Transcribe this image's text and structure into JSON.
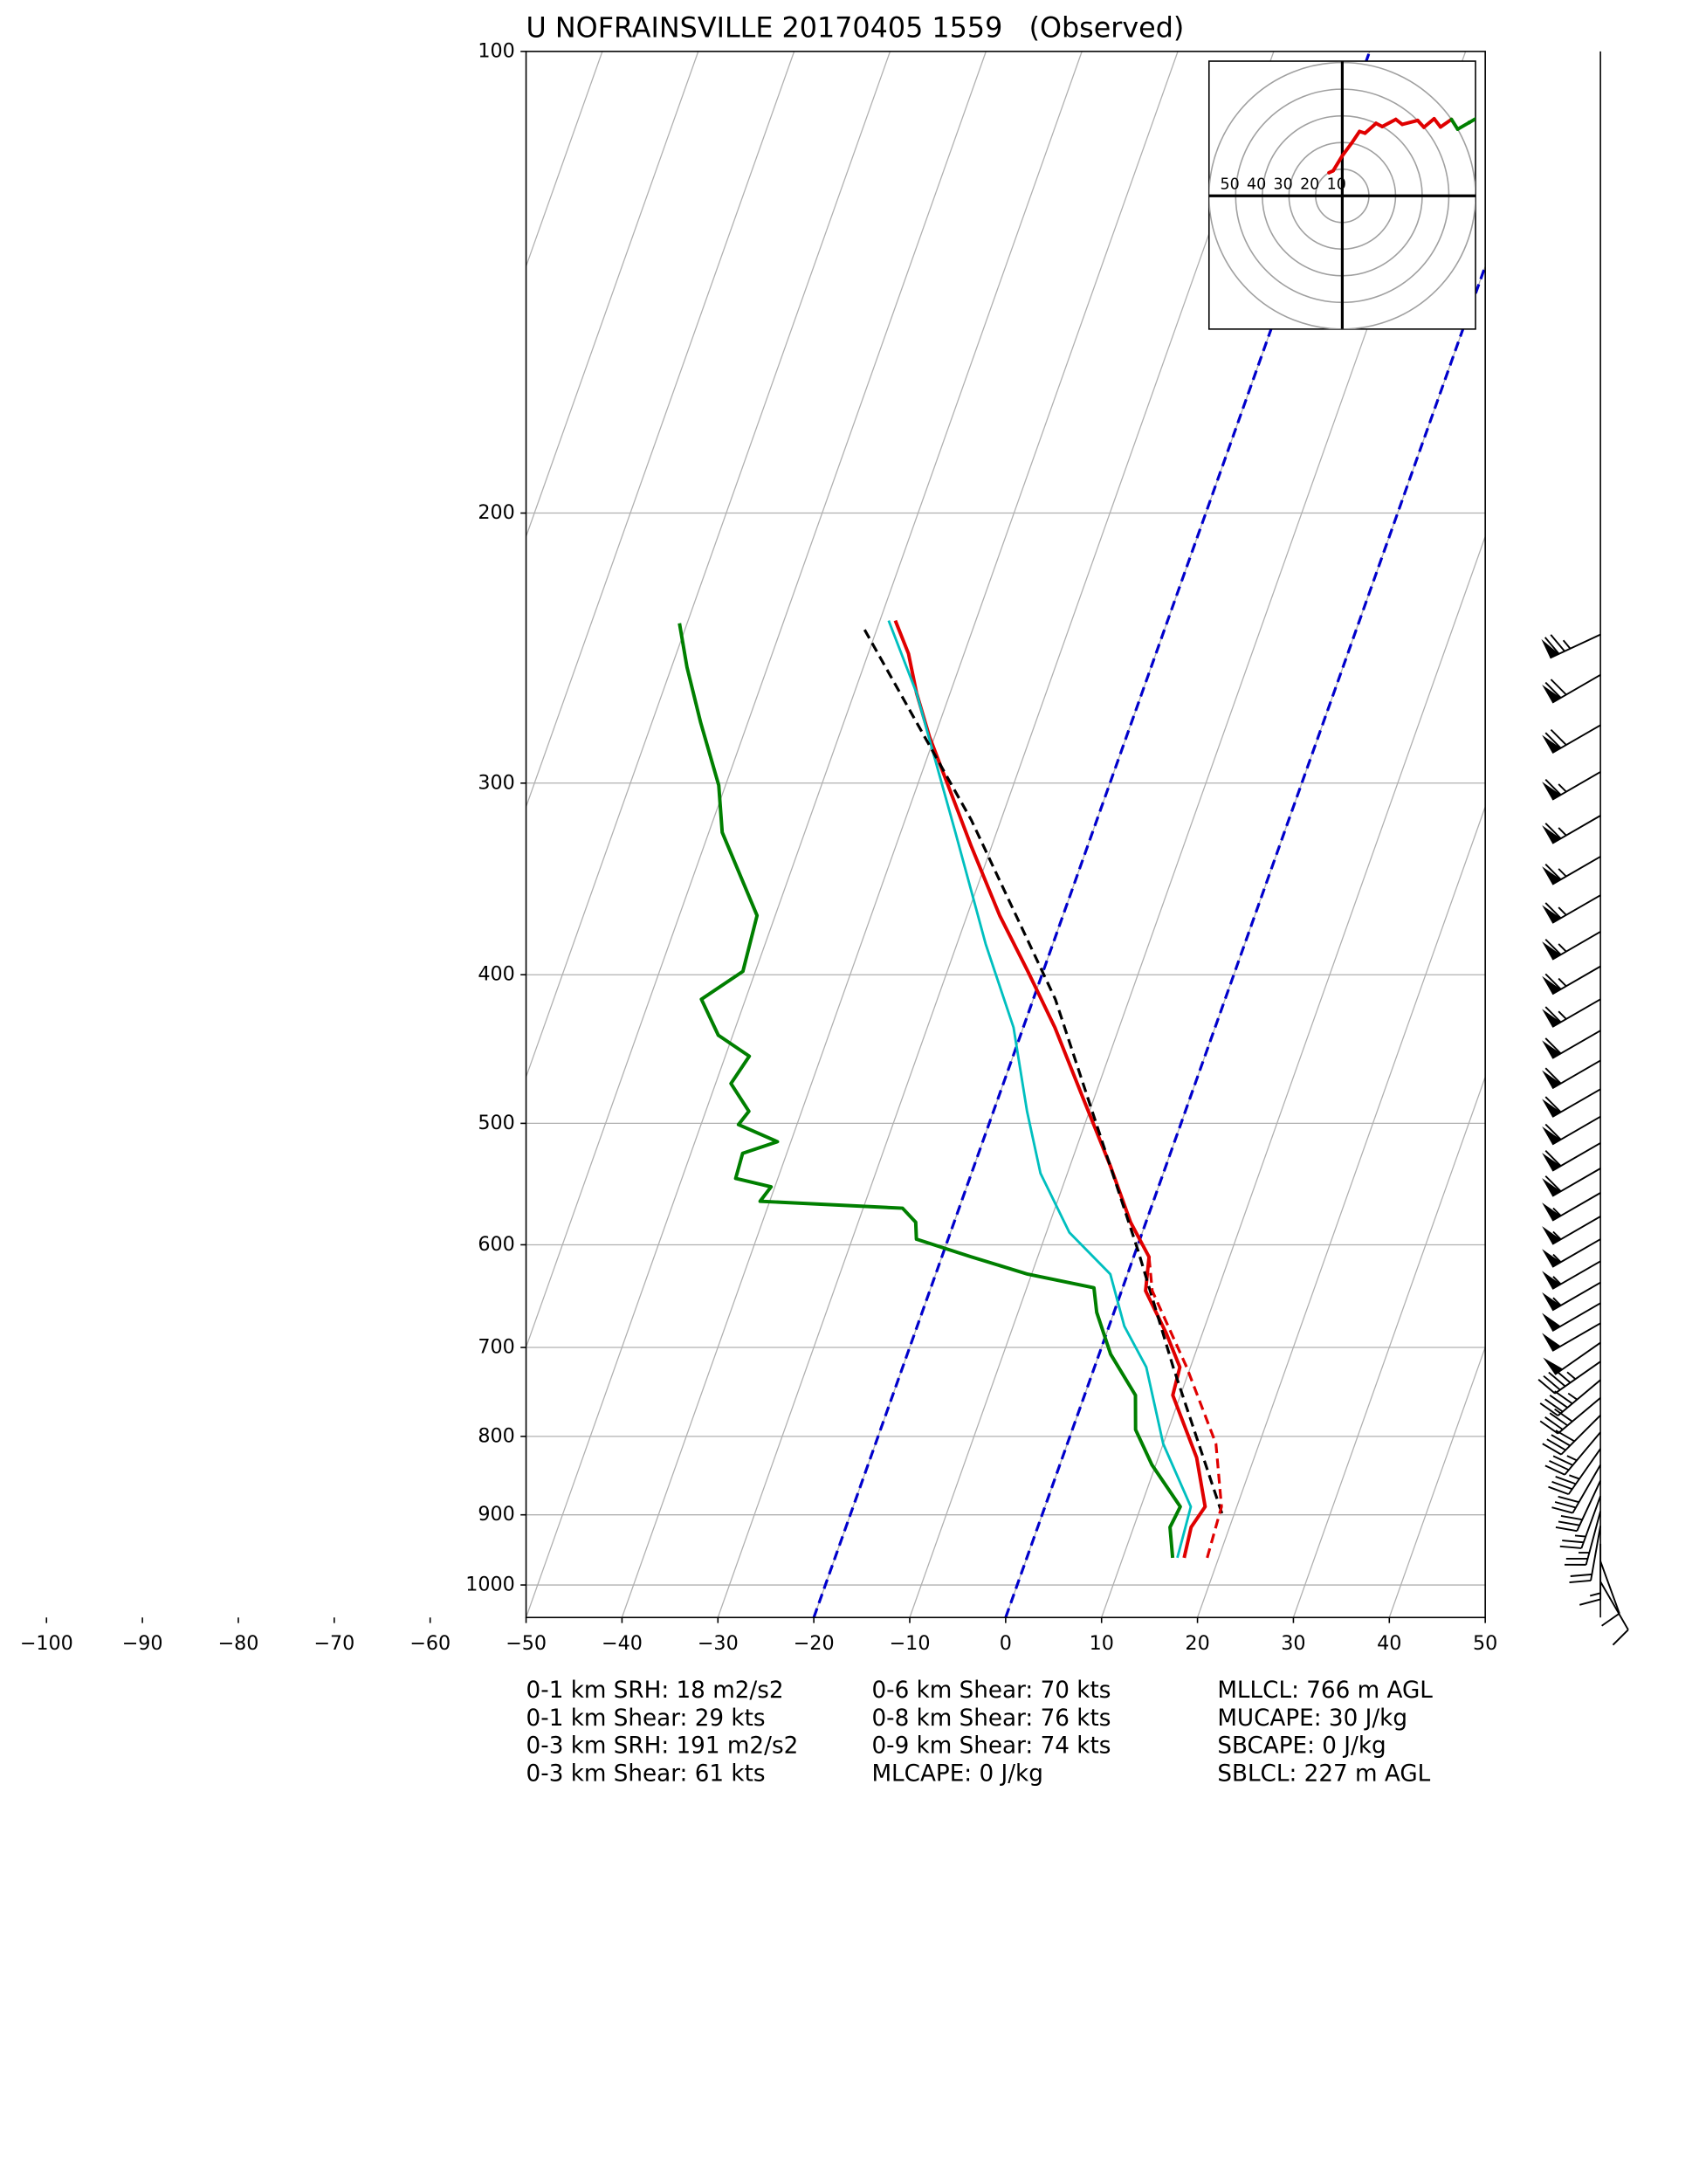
{
  "chart_data": {
    "type": "skewt",
    "title": "U NOFRAINSVILLE 20170405 1559   (Observed)",
    "xlim": [
      -50,
      50
    ],
    "ylim": [
      1050,
      100
    ],
    "xticks": [
      {
        "value": -100,
        "label": "−100"
      },
      {
        "value": -90,
        "label": "−90"
      },
      {
        "value": -80,
        "label": "−80"
      },
      {
        "value": -70,
        "label": "−70"
      },
      {
        "value": -60,
        "label": "−60"
      },
      {
        "value": -50,
        "label": "−50"
      },
      {
        "value": -40,
        "label": "−40"
      },
      {
        "value": -30,
        "label": "−30"
      },
      {
        "value": -20,
        "label": "−20"
      },
      {
        "value": -10,
        "label": "−10"
      },
      0,
      10,
      20,
      30,
      40,
      50
    ],
    "yticks": [
      100,
      200,
      300,
      400,
      500,
      600,
      700,
      800,
      900,
      1000
    ],
    "log_y": true,
    "grid": true,
    "highlight_isotherms": {
      "values": [
        -20,
        0
      ],
      "color": "#0000cc"
    },
    "series": [
      {
        "color": "#e00000",
        "width": 2.5,
        "dashed": false,
        "pressure": [
          960,
          917,
          889,
          826,
          752,
          721,
          685,
          643,
          611,
          580,
          533,
          481,
          433,
          398,
          366,
          330,
          313,
          280,
          262,
          247,
          235
        ],
        "values": [
          16.4,
          16.0,
          16.7,
          14.0,
          9.2,
          8.9,
          6.2,
          2.5,
          1.6,
          -1.6,
          -5.8,
          -11.2,
          -16.7,
          -21.6,
          -26.6,
          -32.1,
          -34.8,
          -40.5,
          -43.5,
          -45.8,
          -48.4
        ]
      },
      {
        "color": "#007f00",
        "width": 2.5,
        "dashed": false,
        "pressure": [
          960,
          917,
          889,
          835,
          792,
          752,
          707,
          664,
          640,
          627,
          611,
          595,
          580,
          568,
          562,
          550,
          543,
          523,
          514,
          501,
          491,
          471,
          452,
          438,
          415,
          398,
          366,
          323,
          301,
          274,
          252,
          236
        ],
        "values": [
          15.2,
          13.8,
          14.1,
          9.6,
          6.6,
          5.3,
          1.2,
          -1.8,
          -3.0,
          -10.4,
          -16.9,
          -23.3,
          -24.0,
          -25.9,
          -41.0,
          -40.4,
          -44.4,
          -44.6,
          -41.4,
          -46.1,
          -45.5,
          -48.4,
          -47.5,
          -51.5,
          -54.6,
          -51.3,
          -51.9,
          -58.6,
          -60.7,
          -64.9,
          -68.4,
          -70.8
        ]
      },
      {
        "color": "#00bfbf",
        "width": 1.8,
        "dashed": false,
        "pressure": [
          960,
          889,
          809,
          721,
          678,
          627,
          589,
          539,
          491,
          433,
          382,
          323,
          262,
          235
        ],
        "values": [
          15.7,
          15.2,
          10.0,
          5.4,
          1.6,
          -1.8,
          -7.6,
          -12.8,
          -16.5,
          -21.0,
          -27.0,
          -34.3,
          -43.5,
          -49.1
        ]
      },
      {
        "color": "#000000",
        "width": 2,
        "dashed": true,
        "pressure": [
          898,
          721,
          605,
          415,
          317,
          237
        ],
        "values": [
          18.7,
          8.2,
          0.2,
          -17.7,
          -33.1,
          -51.6
        ]
      },
      {
        "color": "#e00000",
        "width": 2,
        "dashed": true,
        "pressure": [
          960,
          889,
          809,
          721,
          643,
          611
        ],
        "values": [
          18.8,
          18.4,
          15.5,
          9.6,
          3.2,
          1.6
        ]
      }
    ],
    "winds": {
      "pressure": [
        240,
        255,
        275,
        295,
        315,
        335,
        355,
        375,
        395,
        415,
        435,
        455,
        475,
        495,
        515,
        535,
        555,
        575,
        595,
        615,
        635,
        655,
        675,
        695,
        715,
        735,
        755,
        775,
        795,
        815,
        835,
        855,
        875,
        895,
        915,
        940,
        965,
        995
      ],
      "speed": [
        75,
        70,
        70,
        65,
        65,
        65,
        65,
        65,
        65,
        65,
        60,
        60,
        60,
        60,
        60,
        60,
        55,
        55,
        55,
        55,
        55,
        50,
        50,
        50,
        45,
        45,
        40,
        40,
        35,
        35,
        30,
        30,
        25,
        25,
        20,
        15,
        10,
        10
      ],
      "direction": [
        245,
        240,
        240,
        240,
        240,
        240,
        240,
        240,
        240,
        240,
        240,
        240,
        240,
        240,
        240,
        240,
        240,
        240,
        240,
        240,
        240,
        240,
        240,
        235,
        235,
        230,
        230,
        225,
        220,
        215,
        210,
        205,
        200,
        195,
        190,
        180,
        160,
        150
      ]
    },
    "hodograph": {
      "rings": [
        10,
        20,
        30,
        40,
        50
      ],
      "colors": [
        "#e00000",
        "#007f00",
        "#0000ff"
      ],
      "color_breaks_hpa": [
        700,
        500
      ]
    },
    "stats": [
      [
        "0-1 km SRH: 18 m2/s2",
        "0-1 km Shear: 29 kts",
        "0-3 km SRH: 191 m2/s2",
        "0-3 km Shear: 61 kts"
      ],
      [
        "0-6 km Shear: 70 kts",
        "0-8 km Shear: 76 kts",
        "0-9 km Shear: 74 kts",
        "MLCAPE: 0 J/kg"
      ],
      [
        "MLLCL: 766 m AGL",
        "MUCAPE: 30 J/kg",
        "SBCAPE: 0 J/kg",
        "SBLCL: 227 m AGL"
      ]
    ]
  }
}
